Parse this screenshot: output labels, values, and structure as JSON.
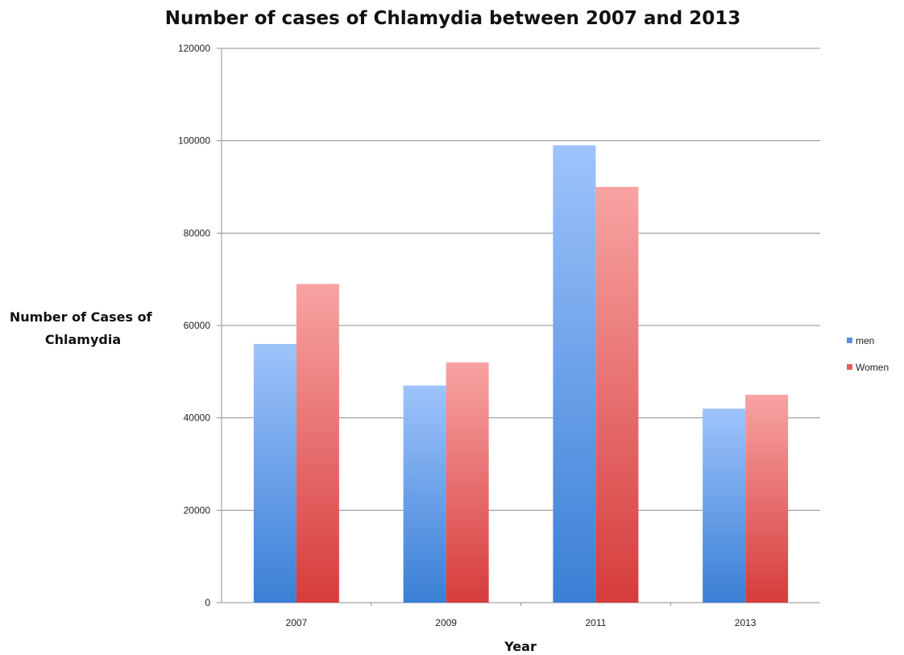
{
  "chart_data": {
    "type": "bar",
    "title": "Number of cases of Chlamydia between 2007 and 2013",
    "xlabel": "Year",
    "ylabel_lines": [
      "Number of Cases of",
      "Chlamydia"
    ],
    "categories": [
      "2007",
      "2009",
      "2011",
      "2013"
    ],
    "series": [
      {
        "name": "men",
        "values": [
          56000,
          47000,
          99000,
          42000
        ],
        "color": "#5b8fe0"
      },
      {
        "name": "Women",
        "values": [
          69000,
          52000,
          90000,
          45000
        ],
        "color": "#e35f5f"
      }
    ],
    "ylim": [
      0,
      120000
    ],
    "yticks": [
      "0",
      "20000",
      "40000",
      "60000",
      "80000",
      "100000",
      "120000"
    ],
    "grid": true,
    "legend_position": "right"
  }
}
